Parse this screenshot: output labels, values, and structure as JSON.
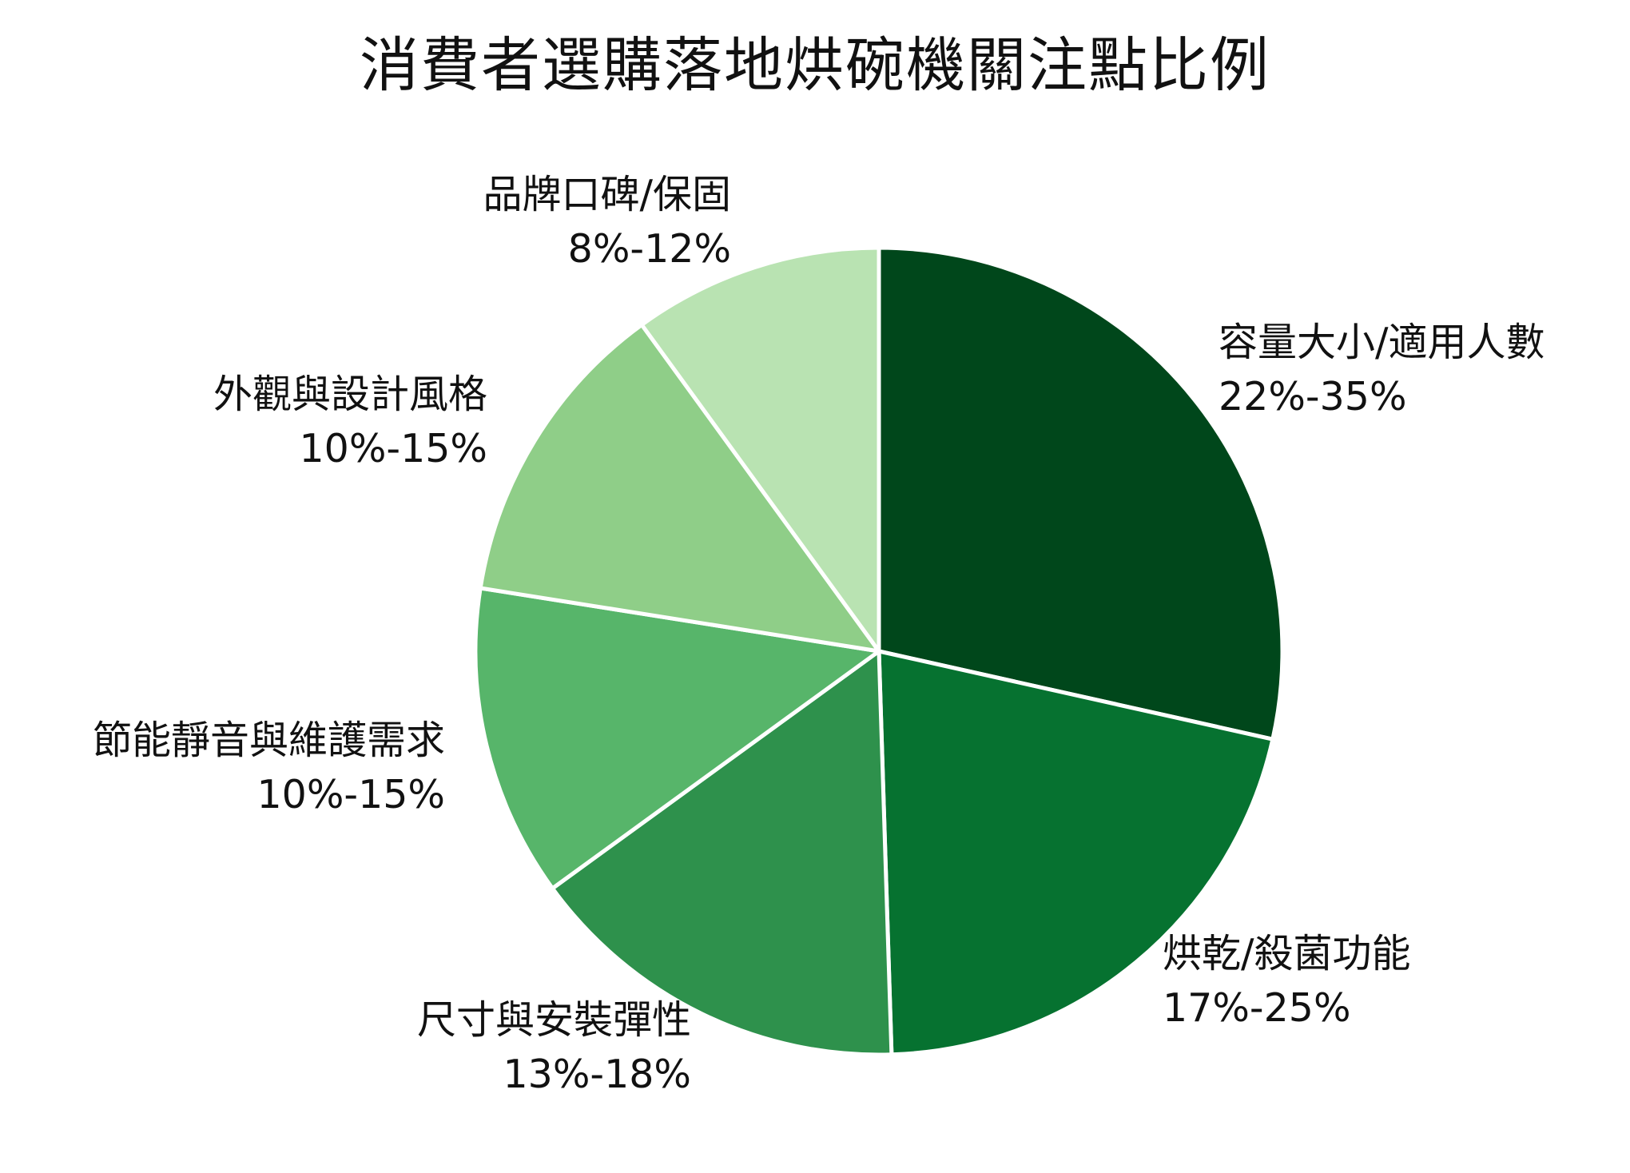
{
  "title": "消費者選購落地烘碗機關注點比例",
  "chart_data": {
    "type": "pie",
    "title": "消費者選購落地烘碗機關注點比例",
    "slices": [
      {
        "name": "容量大小/適用人數",
        "range": "22%-35%",
        "value": 28.5,
        "color": "#00471b"
      },
      {
        "name": "烘乾/殺菌功能",
        "range": "17%-25%",
        "value": 21,
        "color": "#067230"
      },
      {
        "name": "尺寸與安裝彈性",
        "range": "13%-18%",
        "value": 15.5,
        "color": "#2e914c"
      },
      {
        "name": "節能靜音與維護需求",
        "range": "10%-15%",
        "value": 12.5,
        "color": "#57b56a"
      },
      {
        "name": "外觀與設計風格",
        "range": "10%-15%",
        "value": 12.5,
        "color": "#8fce88"
      },
      {
        "name": "品牌口碑/保固",
        "range": "8%-12%",
        "value": 10,
        "color": "#b9e3b2"
      }
    ]
  }
}
